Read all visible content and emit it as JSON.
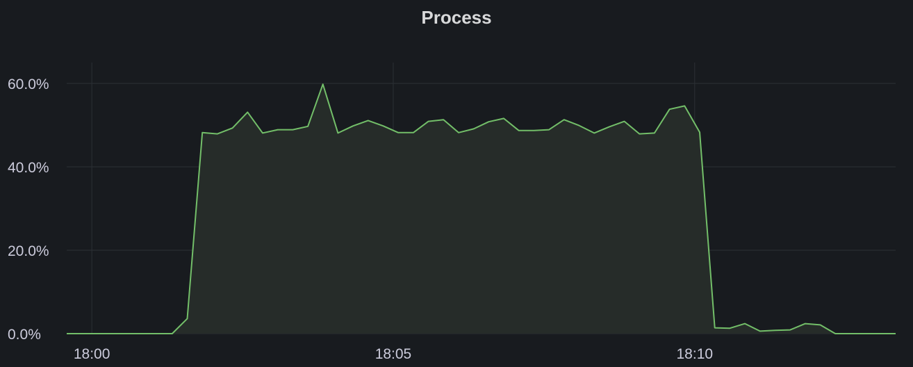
{
  "panel": {
    "title": "Process"
  },
  "chart_data": {
    "type": "area",
    "title": "Process",
    "xlabel": "",
    "ylabel": "",
    "x_ticks": [
      "18:00",
      "18:05",
      "18:10"
    ],
    "y_ticks": [
      "0.0%",
      "20.0%",
      "40.0%",
      "60.0%"
    ],
    "ylim": [
      0,
      65
    ],
    "xlim": [
      "17:59:35",
      "18:13:20"
    ],
    "grid": true,
    "legend": "none",
    "unit": "%",
    "colors": {
      "line": "#73bf69",
      "fill": "#262c29",
      "background": "#181b1f",
      "grid": "#2c3035",
      "text": "#ccccdc"
    },
    "series": [
      {
        "x": [
          "17:59:35",
          "17:59:50",
          "18:00:05",
          "18:00:20",
          "18:00:35",
          "18:00:50",
          "18:01:05",
          "18:01:20",
          "18:01:35",
          "18:01:50",
          "18:02:05",
          "18:02:20",
          "18:02:35",
          "18:02:50",
          "18:03:05",
          "18:03:20",
          "18:03:35",
          "18:03:50",
          "18:04:05",
          "18:04:20",
          "18:04:35",
          "18:04:50",
          "18:05:05",
          "18:05:20",
          "18:05:35",
          "18:05:50",
          "18:06:05",
          "18:06:20",
          "18:06:35",
          "18:06:50",
          "18:07:05",
          "18:07:20",
          "18:07:35",
          "18:07:50",
          "18:08:05",
          "18:08:20",
          "18:08:35",
          "18:08:50",
          "18:09:05",
          "18:09:20",
          "18:09:35",
          "18:09:50",
          "18:10:05",
          "18:10:20",
          "18:10:35",
          "18:10:50",
          "18:11:05",
          "18:11:20",
          "18:11:35",
          "18:11:50",
          "18:12:05",
          "18:12:20",
          "18:12:35",
          "18:12:50",
          "18:13:05",
          "18:13:20"
        ],
        "y": [
          0,
          0,
          0,
          0,
          0,
          0,
          0,
          0,
          3.6,
          48.2,
          47.9,
          49.3,
          53.1,
          48.1,
          48.9,
          48.9,
          49.7,
          59.8,
          48.1,
          49.8,
          51.1,
          49.8,
          48.2,
          48.2,
          50.9,
          51.3,
          48.2,
          49.1,
          50.8,
          51.6,
          48.7,
          48.7,
          48.9,
          51.3,
          49.9,
          48.1,
          49.6,
          50.9,
          47.9,
          48.1,
          53.8,
          54.6,
          48.3,
          1.4,
          1.3,
          2.4,
          0.6,
          0.8,
          0.9,
          2.4,
          2.1,
          0,
          0,
          0,
          0,
          0
        ]
      }
    ]
  }
}
